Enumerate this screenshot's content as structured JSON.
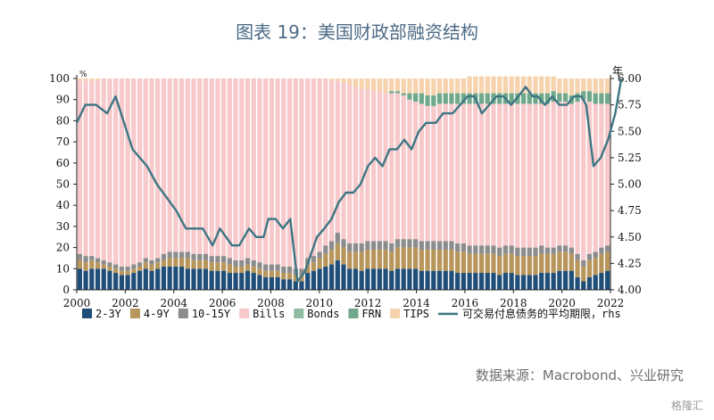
{
  "header": {
    "title": "图表 19：美国财政部融资结构"
  },
  "footer": {
    "source": "数据来源：Macrobond、兴业研究",
    "watermark": "格隆汇"
  },
  "chart_data": {
    "type": "bar",
    "stacked": true,
    "x_ticks": [
      "2000",
      "2002",
      "2004",
      "2006",
      "2008",
      "2010",
      "2012",
      "2014",
      "2016",
      "2018",
      "2020",
      "2022"
    ],
    "x_range": [
      2000,
      2022
    ],
    "ylim_left": [
      0,
      100
    ],
    "yticks_left": [
      0,
      10,
      20,
      30,
      40,
      50,
      60,
      70,
      80,
      90,
      100
    ],
    "ylim_right": [
      4.0,
      6.0
    ],
    "yticks_right": [
      "4.00",
      "4.25",
      "4.50",
      "4.75",
      "5.00",
      "5.25",
      "5.50",
      "5.75",
      "6.00"
    ],
    "left_unit": "%",
    "right_unit": "年",
    "grid": false,
    "legend_position": "bottom",
    "quarters": 89,
    "series": [
      {
        "name": "2-3Y",
        "color": "#1f4e79",
        "values": [
          10,
          9,
          10,
          10,
          10,
          9,
          8,
          7,
          7,
          8,
          9,
          10,
          9,
          10,
          11,
          11,
          11,
          11,
          10,
          10,
          10,
          10,
          9,
          9,
          9,
          8,
          8,
          8,
          9,
          8,
          7,
          6,
          6,
          6,
          5,
          5,
          4,
          4,
          8,
          9,
          10,
          11,
          12,
          14,
          12,
          10,
          10,
          9,
          10,
          10,
          10,
          10,
          9,
          10,
          10,
          10,
          10,
          9,
          9,
          9,
          9,
          9,
          9,
          8,
          8,
          8,
          8,
          8,
          8,
          8,
          7,
          8,
          8,
          7,
          7,
          7,
          7,
          8,
          8,
          8,
          9,
          9,
          9,
          6,
          4,
          6,
          7,
          8,
          9
        ]
      },
      {
        "name": "4-9Y",
        "color": "#b8955a",
        "values": [
          4,
          4,
          4,
          3,
          2,
          2,
          2,
          2,
          2,
          2,
          2,
          3,
          3,
          3,
          3,
          4,
          4,
          4,
          5,
          4,
          4,
          4,
          4,
          4,
          4,
          4,
          3,
          3,
          3,
          3,
          3,
          3,
          3,
          3,
          3,
          3,
          3,
          3,
          4,
          4,
          5,
          6,
          7,
          8,
          8,
          8,
          8,
          9,
          9,
          9,
          9,
          9,
          9,
          10,
          10,
          10,
          10,
          10,
          10,
          10,
          10,
          10,
          10,
          10,
          10,
          9,
          9,
          9,
          9,
          9,
          9,
          9,
          9,
          9,
          9,
          9,
          9,
          9,
          9,
          9,
          9,
          9,
          8,
          8,
          7,
          8,
          8,
          9,
          9
        ]
      },
      {
        "name": "10-15Y",
        "color": "#8c8c8c",
        "values": [
          3,
          3,
          2,
          2,
          2,
          2,
          2,
          2,
          2,
          2,
          2,
          2,
          2,
          2,
          3,
          3,
          3,
          3,
          3,
          3,
          3,
          3,
          3,
          3,
          3,
          3,
          3,
          3,
          3,
          3,
          3,
          3,
          3,
          3,
          3,
          3,
          3,
          3,
          3,
          3,
          3,
          4,
          4,
          5,
          4,
          4,
          4,
          4,
          4,
          4,
          4,
          4,
          4,
          4,
          4,
          4,
          4,
          4,
          4,
          4,
          4,
          4,
          4,
          4,
          4,
          4,
          4,
          4,
          4,
          4,
          4,
          4,
          4,
          4,
          4,
          4,
          4,
          4,
          3,
          3,
          3,
          3,
          3,
          3,
          3,
          3,
          3,
          3,
          3
        ]
      },
      {
        "name": "Bills",
        "color": "#f7c9cb",
        "values": [
          82,
          83,
          83,
          84,
          86,
          87,
          88,
          89,
          89,
          88,
          87,
          85,
          86,
          85,
          83,
          82,
          82,
          82,
          82,
          83,
          83,
          83,
          84,
          84,
          84,
          85,
          86,
          86,
          85,
          86,
          87,
          88,
          88,
          88,
          89,
          89,
          90,
          90,
          85,
          84,
          82,
          79,
          76,
          72,
          74,
          75,
          74,
          73,
          72,
          71,
          71,
          70,
          71,
          69,
          68,
          66,
          65,
          65,
          64,
          64,
          65,
          65,
          65,
          66,
          66,
          67,
          67,
          67,
          67,
          67,
          68,
          67,
          67,
          68,
          68,
          68,
          68,
          67,
          68,
          69,
          68,
          68,
          68,
          72,
          76,
          72,
          70,
          68,
          67
        ]
      },
      {
        "name": "Bonds",
        "color": "#8fbca0",
        "values": [
          0,
          0,
          0,
          0,
          0,
          0,
          0,
          0,
          0,
          0,
          0,
          0,
          0,
          0,
          0,
          0,
          0,
          0,
          0,
          0,
          0,
          0,
          0,
          0,
          0,
          0,
          0,
          0,
          0,
          0,
          0,
          0,
          0,
          0,
          0,
          0,
          0,
          0,
          0,
          0,
          0,
          0,
          0,
          0,
          0,
          0,
          0,
          0,
          0,
          0,
          0,
          0,
          0,
          0,
          0,
          0,
          0,
          0,
          0,
          0,
          0,
          0,
          0,
          0,
          0,
          0,
          0,
          0,
          0,
          0,
          0,
          0,
          0,
          0,
          0,
          0,
          0,
          0,
          0,
          0,
          0,
          0,
          0,
          0,
          0,
          0,
          0,
          0,
          0
        ]
      },
      {
        "name": "FRN",
        "color": "#6fa88a",
        "values": [
          0,
          0,
          0,
          0,
          0,
          0,
          0,
          0,
          0,
          0,
          0,
          0,
          0,
          0,
          0,
          0,
          0,
          0,
          0,
          0,
          0,
          0,
          0,
          0,
          0,
          0,
          0,
          0,
          0,
          0,
          0,
          0,
          0,
          0,
          0,
          0,
          0,
          0,
          0,
          0,
          0,
          0,
          0,
          0,
          0,
          0,
          0,
          0,
          0,
          0,
          0,
          0,
          1,
          1,
          1,
          3,
          4,
          5,
          5,
          5,
          5,
          5,
          5,
          5,
          5,
          5,
          5,
          5,
          5,
          5,
          5,
          5,
          5,
          5,
          5,
          5,
          5,
          5,
          5,
          5,
          4,
          4,
          4,
          4,
          4,
          5,
          5,
          5,
          5
        ]
      },
      {
        "name": "TIPS",
        "color": "#f6d2ad",
        "values": [
          1,
          1,
          1,
          1,
          0,
          0,
          0,
          0,
          0,
          0,
          0,
          0,
          0,
          0,
          0,
          0,
          0,
          0,
          0,
          0,
          0,
          0,
          0,
          0,
          0,
          0,
          0,
          0,
          0,
          0,
          0,
          0,
          0,
          0,
          0,
          0,
          0,
          0,
          0,
          0,
          0,
          0,
          1,
          1,
          2,
          3,
          4,
          5,
          5,
          6,
          6,
          7,
          6,
          6,
          7,
          7,
          7,
          7,
          8,
          8,
          7,
          7,
          7,
          7,
          7,
          8,
          8,
          8,
          8,
          8,
          8,
          8,
          8,
          8,
          8,
          8,
          8,
          8,
          8,
          7,
          7,
          7,
          8,
          7,
          6,
          6,
          7,
          7,
          7
        ]
      }
    ],
    "line": {
      "name": "可交易付息债务的平均期限，rhs",
      "color": "#3d7683",
      "points": [
        [
          2000.0,
          5.58
        ],
        [
          2000.35,
          5.75
        ],
        [
          2000.8,
          5.75
        ],
        [
          2001.25,
          5.67
        ],
        [
          2001.6,
          5.83
        ],
        [
          2002.3,
          5.33
        ],
        [
          2002.9,
          5.17
        ],
        [
          2003.3,
          5.0
        ],
        [
          2004.1,
          4.75
        ],
        [
          2004.5,
          4.58
        ],
        [
          2005.2,
          4.58
        ],
        [
          2005.6,
          4.42
        ],
        [
          2005.9,
          4.58
        ],
        [
          2006.4,
          4.42
        ],
        [
          2006.7,
          4.42
        ],
        [
          2007.1,
          4.58
        ],
        [
          2007.4,
          4.5
        ],
        [
          2007.7,
          4.5
        ],
        [
          2007.9,
          4.67
        ],
        [
          2008.2,
          4.67
        ],
        [
          2008.5,
          4.58
        ],
        [
          2008.8,
          4.67
        ],
        [
          2009.1,
          4.08
        ],
        [
          2009.4,
          4.17
        ],
        [
          2009.9,
          4.5
        ],
        [
          2010.2,
          4.58
        ],
        [
          2010.5,
          4.67
        ],
        [
          2010.8,
          4.83
        ],
        [
          2011.1,
          4.92
        ],
        [
          2011.4,
          4.92
        ],
        [
          2011.7,
          5.0
        ],
        [
          2012.0,
          5.17
        ],
        [
          2012.3,
          5.25
        ],
        [
          2012.6,
          5.17
        ],
        [
          2012.9,
          5.33
        ],
        [
          2013.2,
          5.33
        ],
        [
          2013.5,
          5.42
        ],
        [
          2013.8,
          5.33
        ],
        [
          2014.1,
          5.5
        ],
        [
          2014.4,
          5.58
        ],
        [
          2014.8,
          5.58
        ],
        [
          2015.1,
          5.67
        ],
        [
          2015.5,
          5.67
        ],
        [
          2015.8,
          5.75
        ],
        [
          2016.1,
          5.83
        ],
        [
          2016.4,
          5.83
        ],
        [
          2016.7,
          5.67
        ],
        [
          2017.0,
          5.75
        ],
        [
          2017.3,
          5.83
        ],
        [
          2017.6,
          5.83
        ],
        [
          2017.9,
          5.75
        ],
        [
          2018.2,
          5.83
        ],
        [
          2018.5,
          5.92
        ],
        [
          2018.8,
          5.83
        ],
        [
          2019.0,
          5.83
        ],
        [
          2019.3,
          5.75
        ],
        [
          2019.6,
          5.83
        ],
        [
          2019.9,
          5.75
        ],
        [
          2020.2,
          5.75
        ],
        [
          2020.5,
          5.83
        ],
        [
          2020.8,
          5.83
        ],
        [
          2021.0,
          5.75
        ],
        [
          2021.3,
          5.17
        ],
        [
          2021.6,
          5.25
        ],
        [
          2021.9,
          5.42
        ],
        [
          2022.2,
          5.67
        ],
        [
          2022.45,
          6.0
        ]
      ]
    }
  }
}
